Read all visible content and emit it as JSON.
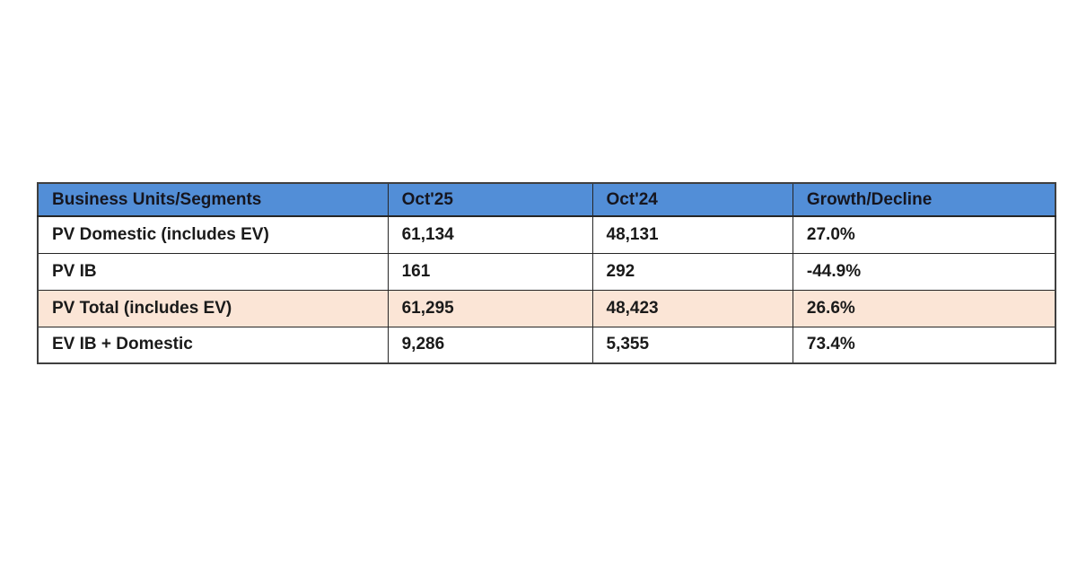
{
  "chart_data": {
    "type": "table",
    "columns": [
      "Business Units/Segments",
      "Oct'25",
      "Oct'24",
      "Growth/Decline"
    ],
    "rows": [
      {
        "cells": [
          "PV Domestic (includes EV)",
          "61,134",
          "48,131",
          "27.0%"
        ],
        "highlight": false
      },
      {
        "cells": [
          "PV IB",
          "161",
          "292",
          "-44.9%"
        ],
        "highlight": false
      },
      {
        "cells": [
          "PV Total (includes EV)",
          "61,295",
          "48,423",
          "26.6%"
        ],
        "highlight": true
      },
      {
        "cells": [
          "EV IB + Domestic",
          "9,286",
          "5,355",
          "73.4%"
        ],
        "highlight": false
      }
    ],
    "numeric": {
      "categories": [
        "PV Domestic (includes EV)",
        "PV IB",
        "PV Total (includes EV)",
        "EV IB + Domestic"
      ],
      "series": [
        {
          "name": "Oct'25",
          "values": [
            61134,
            161,
            61295,
            9286
          ]
        },
        {
          "name": "Oct'24",
          "values": [
            48131,
            292,
            48423,
            5355
          ]
        },
        {
          "name": "Growth/Decline %",
          "values": [
            27.0,
            -44.9,
            26.6,
            73.4
          ]
        }
      ]
    },
    "colors": {
      "header_bg": "#528ED7",
      "header_text": "#16161F",
      "highlight_row_bg": "#FBE5D6",
      "body_text": "#1A1A1A",
      "border": "#3F3F3F"
    }
  }
}
